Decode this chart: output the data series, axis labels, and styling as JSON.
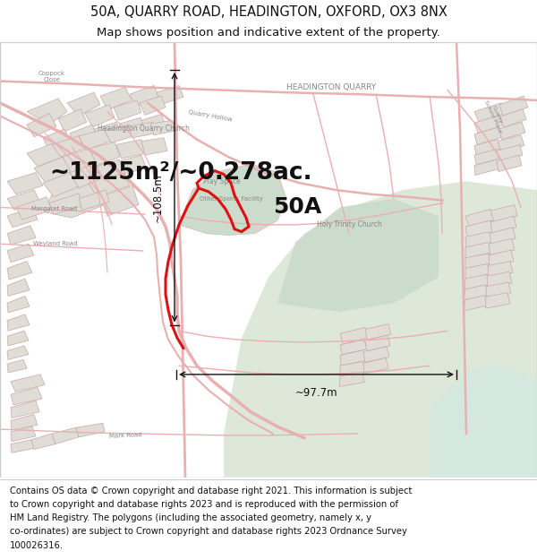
{
  "title_line1": "50A, QUARRY ROAD, HEADINGTON, OXFORD, OX3 8NX",
  "title_line2": "Map shows position and indicative extent of the property.",
  "title_fontsize": 10.5,
  "subtitle_fontsize": 9.5,
  "area_text": "~1125m²/~0.278ac.",
  "area_fontsize": 19,
  "label_50A": "50A",
  "label_50A_fontsize": 18,
  "dim1_text": "~108.5m",
  "dim2_text": "~97.7m",
  "dim_fontsize": 8.5,
  "footer_fontsize": 7.2,
  "map_bg": "#f2efe9",
  "map_bg2": "#eae6de",
  "road_color": "#e8b0b0",
  "road_color2": "#d08080",
  "highlight_color": "#dd1111",
  "green_fill": "#dde8d8",
  "green_fill2": "#ccdccc",
  "water_fill": "#d5e8e0",
  "block_fill": "#e0dcd6",
  "block_stroke": "#c8a8a8",
  "block_fill2": "#d8d4ce",
  "dim_line_color": "#111111",
  "text_color": "#111111",
  "map_label_color": "#888888",
  "header_bg": "#ffffff",
  "footer_bg": "#ffffff",
  "map_border_color": "#cccccc",
  "footer_lines": [
    "Contains OS data © Crown copyright and database right 2021. This information is subject",
    "to Crown copyright and database rights 2023 and is reproduced with the permission of",
    "HM Land Registry. The polygons (including the associated geometry, namely x, y",
    "co-ordinates) are subject to Crown copyright and database rights 2023 Ordnance Survey",
    "100026316."
  ]
}
